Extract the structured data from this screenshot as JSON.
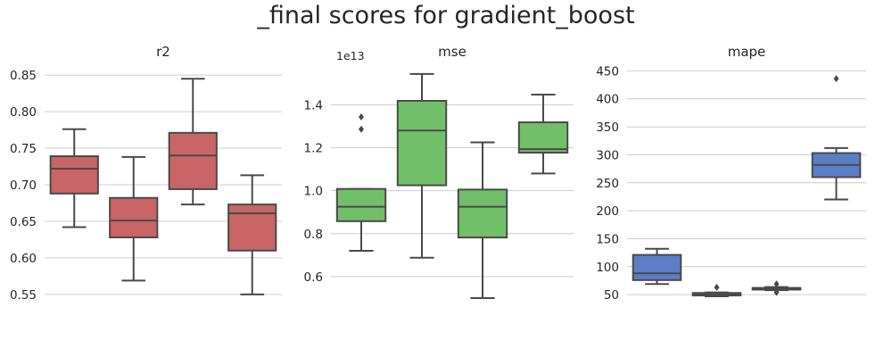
{
  "suptitle": "_final scores for gradient_boost",
  "chart_data": [
    {
      "type": "box",
      "title": "r2",
      "color": "#C96567",
      "ylim": [
        0.545,
        0.855
      ],
      "yticks": [
        0.55,
        0.6,
        0.65,
        0.7,
        0.75,
        0.8,
        0.85
      ],
      "yticklabels": [
        "0.55",
        "0.60",
        "0.65",
        "0.70",
        "0.75",
        "0.80",
        "0.85"
      ],
      "offset_label": "",
      "boxes": [
        {
          "whislo": 0.642,
          "q1": 0.688,
          "med": 0.722,
          "q3": 0.739,
          "whishi": 0.776,
          "fliers": []
        },
        {
          "whislo": 0.569,
          "q1": 0.628,
          "med": 0.651,
          "q3": 0.682,
          "whishi": 0.738,
          "fliers": []
        },
        {
          "whislo": 0.673,
          "q1": 0.694,
          "med": 0.74,
          "q3": 0.771,
          "whishi": 0.845,
          "fliers": []
        },
        {
          "whislo": 0.55,
          "q1": 0.61,
          "med": 0.661,
          "q3": 0.673,
          "whishi": 0.713,
          "fliers": []
        }
      ]
    },
    {
      "type": "box",
      "title": "mse",
      "color": "#72BF6A",
      "ylim": [
        0.5,
        1.555
      ],
      "yticks": [
        0.6,
        0.8,
        1.0,
        1.2,
        1.4
      ],
      "yticklabels": [
        "0.6",
        "0.8",
        "1.0",
        "1.2",
        "1.4"
      ],
      "offset_label": "1e13",
      "boxes": [
        {
          "whislo": 0.72,
          "q1": 0.858,
          "med": 0.925,
          "q3": 1.008,
          "whishi": 1.008,
          "fliers": [
            1.343,
            1.286
          ]
        },
        {
          "whislo": 0.688,
          "q1": 1.025,
          "med": 1.28,
          "q3": 1.418,
          "whishi": 1.543,
          "fliers": []
        },
        {
          "whislo": 0.5,
          "q1": 0.782,
          "med": 0.925,
          "q3": 1.005,
          "whishi": 1.225,
          "fliers": []
        },
        {
          "whislo": 1.08,
          "q1": 1.177,
          "med": 1.193,
          "q3": 1.318,
          "whishi": 1.447,
          "fliers": []
        }
      ]
    },
    {
      "type": "box",
      "title": "mape",
      "color": "#5A7FC7",
      "ylim": [
        47,
        457
      ],
      "yticks": [
        50,
        100,
        150,
        200,
        250,
        300,
        350,
        400,
        450
      ],
      "yticklabels": [
        "50",
        "100",
        "150",
        "200",
        "250",
        "300",
        "350",
        "400",
        "450"
      ],
      "offset_label": "",
      "boxes": [
        {
          "whislo": 69,
          "q1": 76,
          "med": 88,
          "q3": 121,
          "whishi": 132,
          "fliers": []
        },
        {
          "whislo": 47,
          "q1": 48.5,
          "med": 51,
          "q3": 53,
          "whishi": 54,
          "fliers": [
            63
          ]
        },
        {
          "whislo": 58,
          "q1": 59,
          "med": 60.5,
          "q3": 62,
          "whishi": 63.5,
          "fliers": [
            69,
            54
          ]
        },
        {
          "whislo": 220,
          "q1": 260,
          "med": 282,
          "q3": 303,
          "whishi": 312,
          "fliers": [
            436
          ]
        }
      ]
    }
  ]
}
